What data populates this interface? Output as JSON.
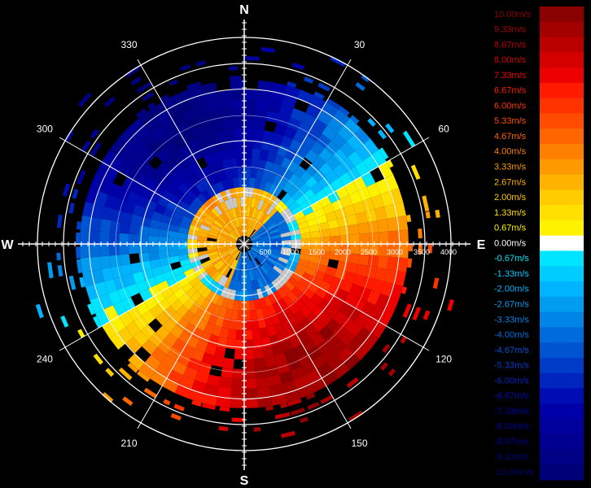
{
  "compass": {
    "north": "N",
    "south": "S",
    "east": "E",
    "west": "W"
  },
  "azimuth_labels": [
    "30",
    "60",
    "120",
    "150",
    "210",
    "240",
    "300",
    "330"
  ],
  "range_labels": [
    "500",
    "1000",
    "1500",
    "2000",
    "2500",
    "3000",
    "3500",
    "4000"
  ],
  "legend": {
    "labels": [
      "10.00m/s",
      "9.33m/s",
      "8.67m/s",
      "8.00m/s",
      "7.33m/s",
      "6.67m/s",
      "6.00m/s",
      "5.33m/s",
      "4.67m/s",
      "4.00m/s",
      "3.33m/s",
      "2.67m/s",
      "2.00m/s",
      "1.33m/s",
      "0.67m/s",
      "0.00m/s",
      "-0.67m/s",
      "-1.33m/s",
      "-2.00m/s",
      "-2.67m/s",
      "-3.33m/s",
      "-4.00m/s",
      "-4.67m/s",
      "-5.33m/s",
      "-6.00m/s",
      "-6.67m/s",
      "-7.33m/s",
      "-8.00m/s",
      "-8.67m/s",
      "-9.33m/s",
      "-10.00m/s"
    ],
    "colors": [
      "#8b0000",
      "#a30000",
      "#bb0000",
      "#d40000",
      "#ec0000",
      "#ff1a00",
      "#ff3300",
      "#ff4c00",
      "#ff6600",
      "#ff7f00",
      "#ff9900",
      "#ffb200",
      "#ffcc00",
      "#ffe000",
      "#fff200",
      "#ffffff",
      "#00e5ff",
      "#00ccff",
      "#00b4ff",
      "#009cf0",
      "#0084e6",
      "#006cdc",
      "#0054d2",
      "#003cc8",
      "#0024be",
      "#000cb4",
      "#0000a8",
      "#00009c",
      "#000090",
      "#000084",
      "#000078"
    ]
  }
}
